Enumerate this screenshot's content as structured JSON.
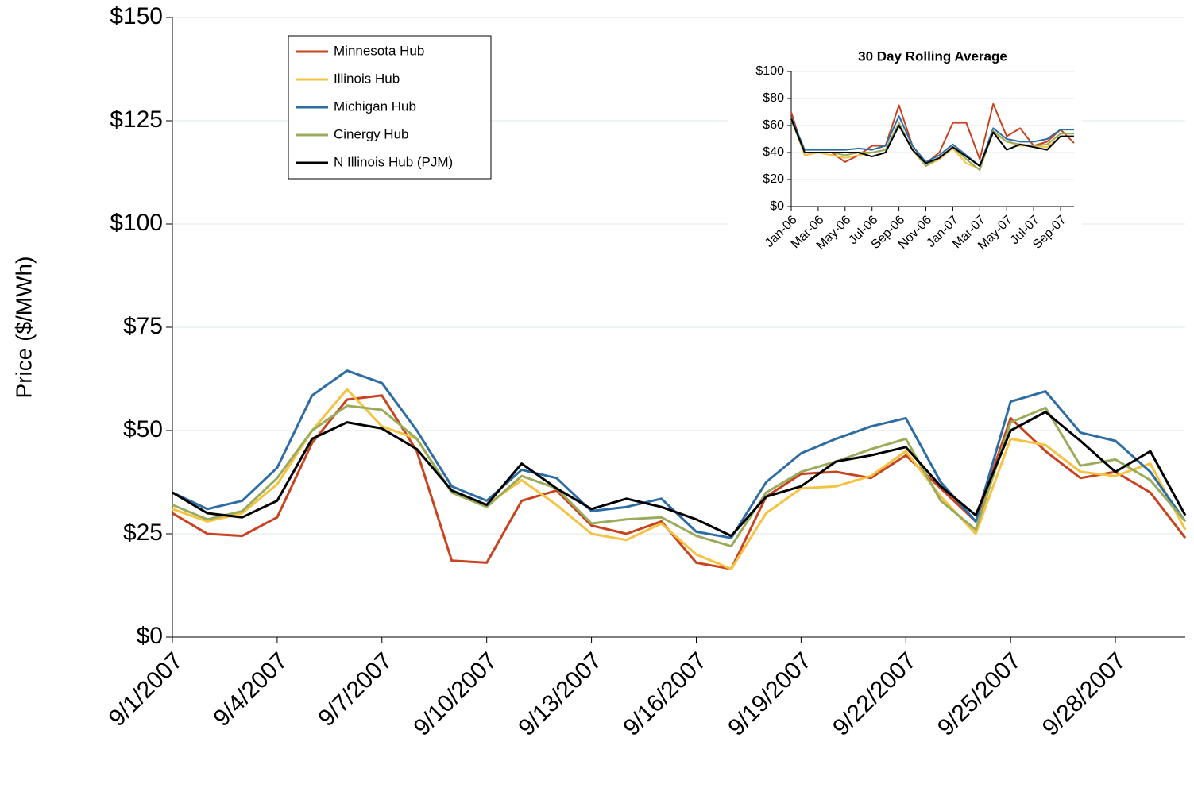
{
  "chart_data": [
    {
      "type": "line",
      "y_label": "Price ($/MWh)",
      "categories": [
        "9/1/2007",
        null,
        null,
        "9/4/2007",
        null,
        null,
        "9/7/2007",
        null,
        null,
        "9/10/2007",
        null,
        null,
        "9/13/2007",
        null,
        null,
        "9/16/2007",
        null,
        null,
        "9/19/2007",
        null,
        null,
        "9/22/2007",
        null,
        null,
        "9/25/2007",
        null,
        null,
        "9/28/2007",
        null,
        null
      ],
      "series": [
        {
          "name": "Minnesota Hub",
          "color": "#c8431f",
          "values": [
            30,
            25,
            24.5,
            29,
            47,
            57.5,
            58.5,
            45,
            18.5,
            18,
            33,
            35.5,
            27,
            25,
            28,
            18,
            16.5,
            34,
            39.5,
            40,
            38.5,
            44,
            36,
            28,
            53,
            45,
            38.5,
            40,
            35,
            24
          ]
        },
        {
          "name": "Illinois Hub",
          "color": "#f5c242",
          "values": [
            31,
            28,
            30,
            37,
            50,
            60,
            51,
            48,
            35,
            32,
            38,
            32,
            25,
            23.5,
            27.5,
            20,
            16.5,
            30,
            36,
            36.5,
            39,
            45,
            34,
            25,
            48,
            46.5,
            40,
            39,
            42,
            26
          ]
        },
        {
          "name": "Michigan Hub",
          "color": "#2e6da4",
          "values": [
            35,
            31,
            33,
            41,
            58.5,
            64.5,
            61.5,
            50,
            36.5,
            33,
            40.5,
            38.5,
            30.5,
            31.5,
            33.5,
            25.5,
            24,
            37.5,
            44.5,
            48,
            51,
            53,
            37.5,
            28,
            57,
            59.5,
            49.5,
            47.5,
            40,
            28
          ]
        },
        {
          "name": "Cinergy Hub",
          "color": "#9bab5c",
          "values": [
            32,
            28.5,
            30.5,
            38.5,
            50,
            56,
            55,
            48,
            35,
            31.5,
            39,
            36,
            27.5,
            28.5,
            29,
            24.5,
            22,
            35,
            40,
            42.5,
            45.5,
            48,
            33,
            26,
            52,
            55.5,
            41.5,
            43,
            38,
            28
          ]
        },
        {
          "name": "N Illinois Hub (PJM)",
          "color": "#000000",
          "values": [
            35,
            30,
            29,
            33,
            48,
            52,
            50.5,
            45.5,
            35.5,
            32,
            42,
            36,
            31,
            33.5,
            31.5,
            28.5,
            24.5,
            34,
            36.5,
            42.5,
            44,
            46,
            36.5,
            29.5,
            50,
            54.5,
            47.5,
            40,
            45,
            29.5
          ]
        }
      ],
      "ylim": [
        0,
        150
      ],
      "yticks": [
        {
          "value": 0,
          "label": "$0"
        },
        {
          "value": 25,
          "label": "$25"
        },
        {
          "value": 50,
          "label": "$50"
        },
        {
          "value": 75,
          "label": "$75"
        },
        {
          "value": 100,
          "label": "$100"
        },
        {
          "value": 125,
          "label": "$125"
        },
        {
          "value": 150,
          "label": "$150"
        }
      ],
      "grid": true,
      "legend": "top-left"
    },
    {
      "type": "line",
      "title": "30 Day Rolling Average",
      "categories": [
        "Jan-06",
        null,
        "Mar-06",
        null,
        "May-06",
        null,
        "Jul-06",
        null,
        "Sep-06",
        null,
        "Nov-06",
        null,
        "Jan-07",
        null,
        "Mar-07",
        null,
        "May-07",
        null,
        "Jul-07",
        null,
        "Sep-07",
        null
      ],
      "series": [
        {
          "color": "#c8431f",
          "values": [
            70,
            38,
            40,
            40,
            33,
            38,
            45,
            45,
            75,
            45,
            32,
            40,
            62,
            62,
            35,
            76,
            52,
            58,
            45,
            48,
            57,
            47
          ]
        },
        {
          "color": "#f5c242",
          "values": [
            65,
            38,
            40,
            38,
            36,
            38,
            40,
            42,
            60,
            42,
            30,
            35,
            43,
            32,
            28,
            55,
            48,
            45,
            45,
            44,
            52,
            52
          ]
        },
        {
          "color": "#2e6da4",
          "values": [
            66,
            42,
            42,
            42,
            42,
            43,
            42,
            45,
            67,
            45,
            33,
            38,
            46,
            38,
            30,
            58,
            50,
            48,
            48,
            50,
            57,
            57
          ]
        },
        {
          "color": "#9bab5c",
          "values": [
            64,
            40,
            40,
            40,
            38,
            40,
            40,
            42,
            62,
            42,
            30,
            36,
            44,
            35,
            27,
            56,
            48,
            46,
            45,
            46,
            54,
            54
          ]
        },
        {
          "color": "#000000",
          "values": [
            65,
            40,
            40,
            40,
            40,
            40,
            37,
            40,
            60,
            42,
            32,
            36,
            44,
            37,
            30,
            55,
            42,
            46,
            44,
            42,
            52,
            52
          ]
        }
      ],
      "ylim": [
        0,
        100
      ],
      "yticks": [
        {
          "value": 0,
          "label": "$0"
        },
        {
          "value": 20,
          "label": "$20"
        },
        {
          "value": 40,
          "label": "$40"
        },
        {
          "value": 60,
          "label": "$60"
        },
        {
          "value": 80,
          "label": "$80"
        },
        {
          "value": 100,
          "label": "$100"
        }
      ],
      "grid": true
    }
  ]
}
